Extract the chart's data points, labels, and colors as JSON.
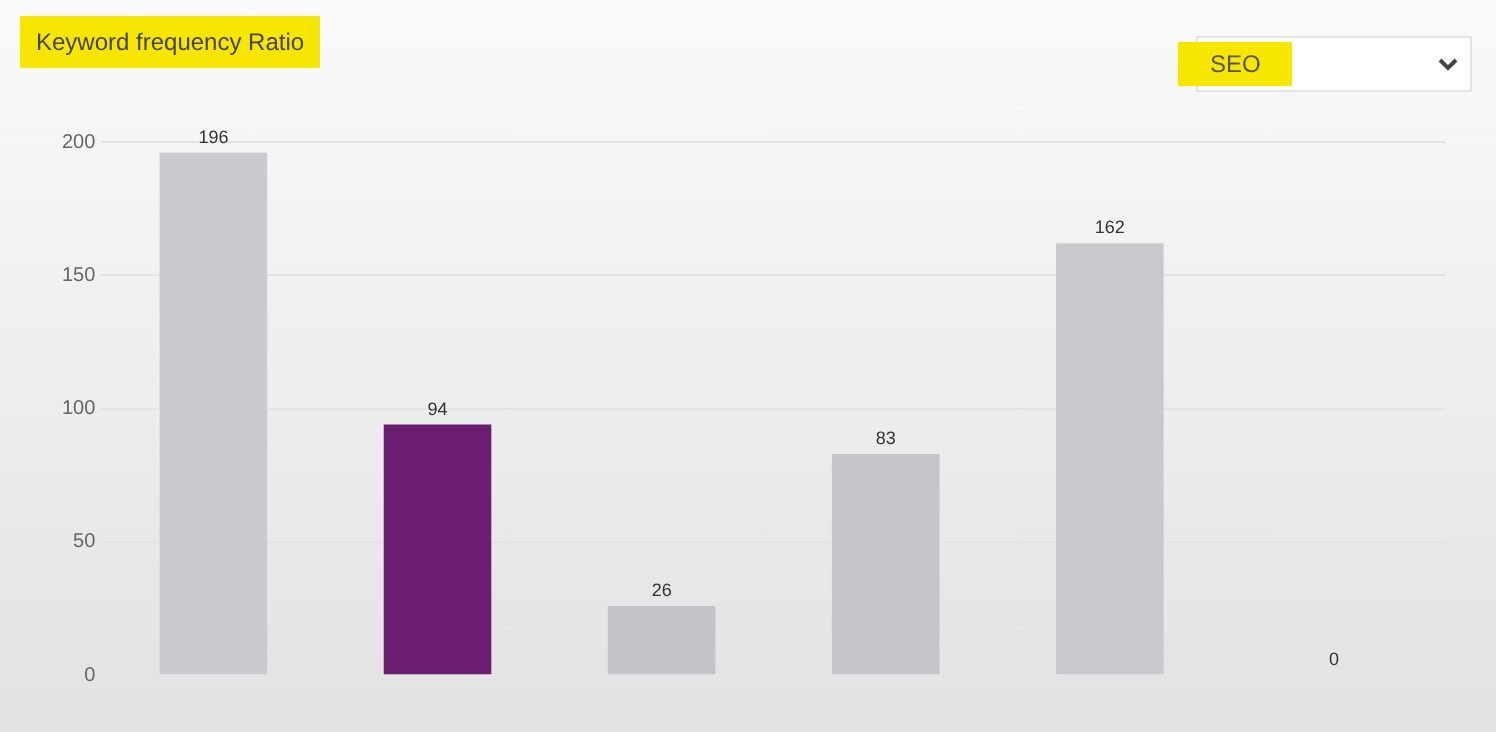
{
  "chart_data": {
    "type": "bar",
    "title": "Keyword frequency Ratio",
    "annotations": [
      "SEO"
    ],
    "categories": [
      null,
      null,
      null,
      null,
      null,
      null
    ],
    "values": [
      196,
      94,
      26,
      83,
      162,
      0
    ],
    "colors": [
      "#cbcbcf",
      "#6b1e6f",
      "#c4c4c8",
      "#c6c6ca",
      "#c9c9cd",
      "#c4c4c8"
    ],
    "ylim": [
      0,
      200
    ],
    "yticks": [
      0,
      50,
      100,
      150,
      200
    ],
    "grid": "y",
    "data_labels": true,
    "legend": false
  }
}
